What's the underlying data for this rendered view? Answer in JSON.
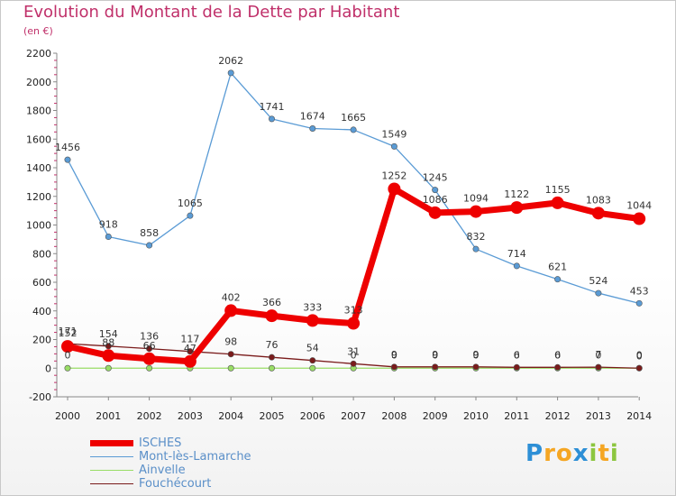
{
  "header": {
    "title": "Evolution du Montant de la Dette par Habitant",
    "subtitle": "(en €)"
  },
  "brand": {
    "letters": [
      {
        "ch": "P",
        "color": "#2d8fd6"
      },
      {
        "ch": "r",
        "color": "#f5a623"
      },
      {
        "ch": "o",
        "color": "#f5a623"
      },
      {
        "ch": "x",
        "color": "#2d8fd6"
      },
      {
        "ch": "i",
        "color": "#8cc63f"
      },
      {
        "ch": "t",
        "color": "#f5a623"
      },
      {
        "ch": "i",
        "color": "#8cc63f"
      }
    ]
  },
  "chart_data": {
    "type": "line",
    "x": [
      "2000",
      "2001",
      "2002",
      "2003",
      "2004",
      "2005",
      "2006",
      "2007",
      "2008",
      "2009",
      "2010",
      "2011",
      "2012",
      "2013",
      "2014"
    ],
    "ylim": [
      -200,
      2200
    ],
    "yticks": [
      -200,
      0,
      200,
      400,
      600,
      800,
      1000,
      1200,
      1400,
      1600,
      1800,
      2000,
      2200
    ],
    "grid": false,
    "legend_position": "bottom-left",
    "series": [
      {
        "name": "ISCHES",
        "color": "#ee0000",
        "values": [
          152,
          88,
          66,
          47,
          402,
          366,
          333,
          313,
          1252,
          1086,
          1094,
          1122,
          1155,
          1083,
          1044
        ],
        "labels": [
          "152",
          "88",
          "66",
          "47",
          "402",
          "366",
          "333",
          "313",
          "1252",
          "1086",
          "1094",
          "1122",
          "1155",
          "1083",
          "1044"
        ]
      },
      {
        "name": "Mont-lès-Lamarche",
        "color": "#5a9bd5",
        "values": [
          1456,
          918,
          858,
          1065,
          2062,
          1741,
          1674,
          1665,
          1549,
          1245,
          832,
          714,
          621,
          524,
          453
        ],
        "labels": [
          "1456",
          "918",
          "858",
          "1065",
          "2062",
          "1741",
          "1674",
          "1665",
          "1549",
          "1245",
          "832",
          "714",
          "621",
          "524",
          "453"
        ]
      },
      {
        "name": "Ainvelle",
        "color": "#99dd66",
        "values": [
          0,
          0,
          0,
          0,
          0,
          0,
          0,
          0,
          0,
          0,
          0,
          0,
          0,
          0,
          0
        ],
        "labels": [
          "0",
          "",
          "",
          "",
          "",
          "",
          "",
          "0",
          "0",
          "0",
          "0",
          "0",
          "0",
          "0",
          "0"
        ]
      },
      {
        "name": "Fouchécourt",
        "color": "#7a1b1b",
        "values": [
          171,
          154,
          136,
          117,
          98,
          76,
          54,
          31,
          9,
          9,
          9,
          6,
          6,
          7,
          0
        ],
        "labels": [
          "171",
          "154",
          "136",
          "117",
          "98",
          "76",
          "54",
          "31",
          "9",
          "9",
          "9",
          "6",
          "6",
          "7",
          "0"
        ]
      }
    ]
  }
}
